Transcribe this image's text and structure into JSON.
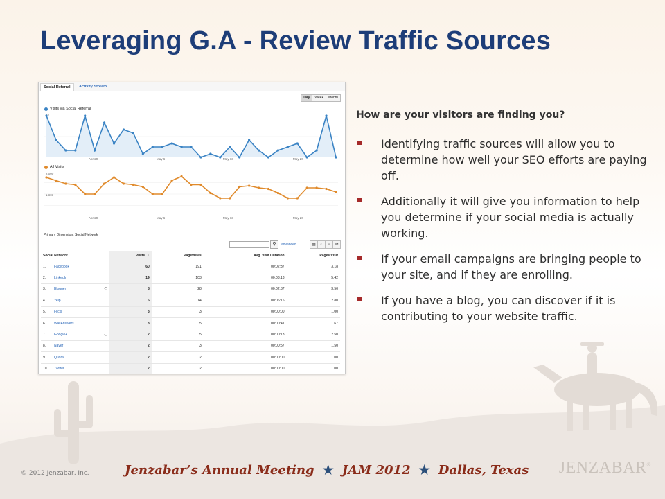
{
  "slide": {
    "title": "Leveraging G.A - Review Traffic Sources",
    "question": "How are your visitors are finding you?",
    "bullets": [
      "Identifying traffic sources will allow you to determine how well your SEO efforts are paying off.",
      "Additionally it will give you information to help you determine if your social media is actually working.",
      "If your email campaigns are bringing people to your site, and if they are enrolling.",
      "If you have a blog, you can discover if it is contributing to your website traffic."
    ]
  },
  "ga": {
    "tabs": [
      "Social Referral",
      "Activity Stream"
    ],
    "range_buttons": [
      "Day",
      "Week",
      "Month"
    ],
    "chart1_legend": "Visits via Social Referral",
    "chart1_yticks": [
      "12",
      "6"
    ],
    "chart2_legend": "All Visits",
    "chart2_yticks": [
      "2,000",
      "1,000"
    ],
    "xticks": [
      "Apr 29",
      "May 6",
      "May 13",
      "May 20"
    ],
    "primary_dimension_label": "Primary Dimension:",
    "primary_dimension_value": "Social Network",
    "advanced_link": "advanced",
    "columns": [
      "Social Network",
      "Visits",
      "Pageviews",
      "Avg. Visit Duration",
      "Pages/Visit"
    ],
    "rows": [
      {
        "n": "1.",
        "name": "Facebook",
        "visits": "60",
        "pageviews": "191",
        "duration": "00:02:37",
        "ppv": "3.18"
      },
      {
        "n": "2.",
        "name": "LinkedIn",
        "visits": "19",
        "pageviews": "103",
        "duration": "00:03:18",
        "ppv": "5.42"
      },
      {
        "n": "3.",
        "name": "Blogger",
        "visits": "8",
        "pageviews": "28",
        "duration": "00:02:37",
        "ppv": "3.50"
      },
      {
        "n": "4.",
        "name": "Yelp",
        "visits": "5",
        "pageviews": "14",
        "duration": "00:06:16",
        "ppv": "2.80"
      },
      {
        "n": "5.",
        "name": "Flickr",
        "visits": "3",
        "pageviews": "3",
        "duration": "00:00:00",
        "ppv": "1.00"
      },
      {
        "n": "6.",
        "name": "WikiAnswers",
        "visits": "3",
        "pageviews": "5",
        "duration": "00:00:41",
        "ppv": "1.67"
      },
      {
        "n": "7.",
        "name": "Google+",
        "visits": "2",
        "pageviews": "5",
        "duration": "00:00:18",
        "ppv": "2.50"
      },
      {
        "n": "8.",
        "name": "Naver",
        "visits": "2",
        "pageviews": "3",
        "duration": "00:00:57",
        "ppv": "1.50"
      },
      {
        "n": "9.",
        "name": "Quora",
        "visits": "2",
        "pageviews": "2",
        "duration": "00:00:00",
        "ppv": "1.00"
      },
      {
        "n": "10.",
        "name": "Twitter",
        "visits": "2",
        "pageviews": "2",
        "duration": "00:00:00",
        "ppv": "1.00"
      }
    ]
  },
  "chart_data": [
    {
      "type": "area",
      "title": "Visits via Social Referral",
      "ylim": [
        0,
        12
      ],
      "color": "#3a83c4",
      "values": [
        12,
        5,
        2,
        2,
        12,
        2,
        10,
        4,
        8,
        7,
        1,
        3,
        3,
        4,
        3,
        3,
        0,
        1,
        0,
        3,
        0,
        5,
        2,
        0,
        2,
        3,
        4,
        0,
        2,
        12,
        0
      ]
    },
    {
      "type": "line",
      "title": "All Visits",
      "ylim": [
        0,
        2000
      ],
      "color": "#e08a2b",
      "values": [
        1800,
        1650,
        1500,
        1450,
        1000,
        1000,
        1500,
        1800,
        1500,
        1450,
        1350,
        1000,
        1000,
        1650,
        1850,
        1450,
        1450,
        1050,
        800,
        800,
        1350,
        1400,
        1300,
        1250,
        1050,
        800,
        800,
        1300,
        1300,
        1250,
        1100
      ]
    }
  ],
  "footer": {
    "copyright": "© 2012 Jenzabar, Inc.",
    "meeting": "Jenzabar’s Annual Meeting",
    "jam": "JAM 2012",
    "city": "Dallas, Texas",
    "logo": "JENZABAR",
    "logo_mark": "®"
  }
}
